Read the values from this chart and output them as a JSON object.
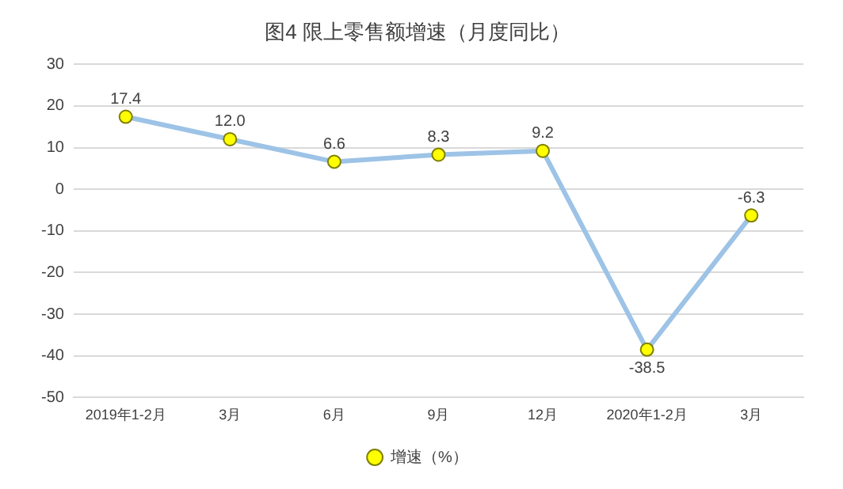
{
  "chart_data": {
    "type": "line",
    "title": "图4 限上零售额增速（月度同比）",
    "categories": [
      "2019年1-2月",
      "3月",
      "6月",
      "9月",
      "12月",
      "2020年1-2月",
      "3月"
    ],
    "series": [
      {
        "name": "增速（%）",
        "color": "#9dc3e6",
        "values": [
          17.4,
          12.0,
          6.6,
          8.3,
          9.2,
          -38.5,
          -6.3
        ],
        "value_labels": [
          "17.4",
          "12.0",
          "6.6",
          "8.3",
          "9.2",
          "-38.5",
          "-6.3"
        ]
      }
    ],
    "ylim": [
      -50,
      30
    ],
    "yticks": [
      -50,
      -40,
      -30,
      -20,
      -10,
      0,
      10,
      20,
      30
    ],
    "grid": "y",
    "legend": "bottom",
    "marker": "circle"
  }
}
